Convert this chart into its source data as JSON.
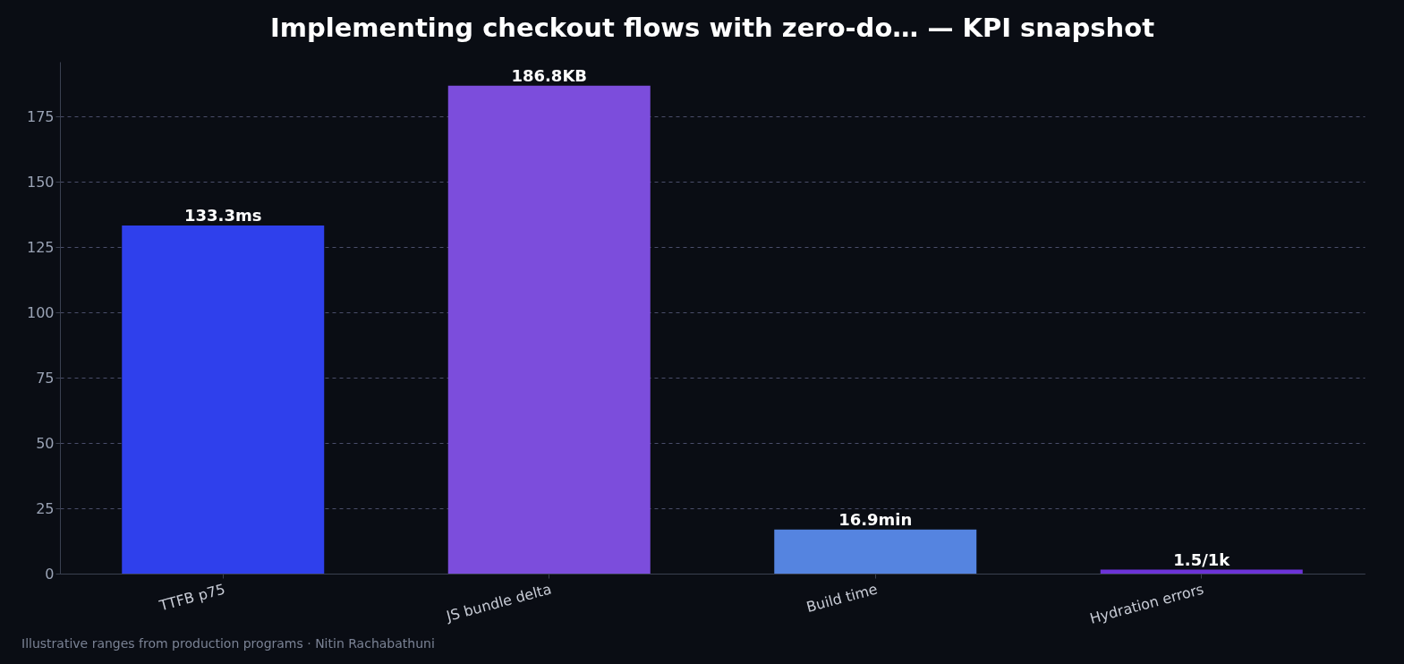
{
  "chart_data": {
    "type": "bar",
    "title": "Implementing checkout flows with zero-do… — KPI snapshot",
    "categories": [
      "TTFB p75",
      "JS bundle delta",
      "Build time",
      "Hydration errors"
    ],
    "values": [
      133.3,
      186.8,
      16.9,
      1.5
    ],
    "colors": [
      "#2f40ec",
      "#7c4ddc",
      "#5584e0",
      "#6c33d8"
    ],
    "value_labels": [
      "133.3ms",
      "186.8KB",
      "16.9min",
      "1.5/1k"
    ],
    "ylim": [
      0,
      196
    ],
    "yticks": [
      0,
      25,
      50,
      75,
      100,
      125,
      150,
      175
    ],
    "grid": "y",
    "annotations": [
      "Illustrative ranges from production programs · Nitin Rachabathuni"
    ]
  }
}
